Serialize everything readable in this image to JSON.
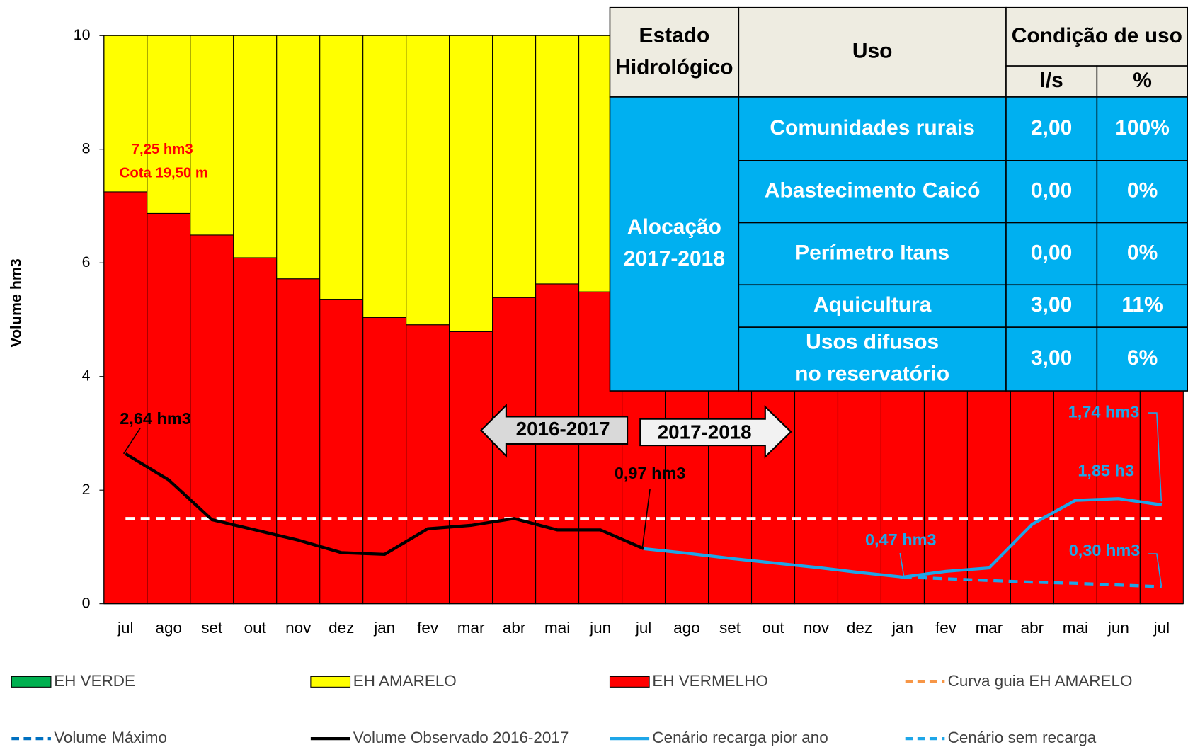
{
  "chart_data": {
    "type": "bar",
    "y_label": "Volume hm3",
    "categories": [
      "jul",
      "ago",
      "set",
      "out",
      "nov",
      "dez",
      "jan",
      "fev",
      "mar",
      "abr",
      "mai",
      "jun",
      "jul",
      "ago",
      "set",
      "out",
      "nov",
      "dez",
      "jan",
      "fev",
      "mar",
      "abr",
      "mai",
      "jun",
      "jul"
    ],
    "ylim": [
      0,
      10
    ],
    "yticks": [
      0,
      2,
      4,
      6,
      8,
      10
    ],
    "grid": false,
    "series": [
      {
        "name": "EH VERDE",
        "kind": "bar",
        "color": "#00b050",
        "values": [
          0,
          0,
          0,
          0,
          0,
          0,
          0,
          0,
          0,
          0,
          0,
          0,
          0,
          0,
          0,
          0,
          0,
          0,
          0,
          0,
          0,
          0,
          0,
          0,
          0
        ]
      },
      {
        "name": "EH AMARELO",
        "kind": "bar",
        "color": "#ffff00",
        "values": [
          2.75,
          3.13,
          3.51,
          3.91,
          4.28,
          4.64,
          4.96,
          5.09,
          5.21,
          4.61,
          4.37,
          4.51,
          0,
          0,
          0,
          0,
          0,
          0,
          0,
          0,
          0,
          0,
          0,
          0,
          0
        ]
      },
      {
        "name": "EH VERMELHO",
        "kind": "bar",
        "color": "#ff0000",
        "values": [
          7.25,
          6.87,
          6.49,
          6.09,
          5.72,
          5.36,
          5.04,
          4.91,
          4.79,
          5.39,
          5.63,
          5.49,
          10,
          10,
          10,
          10,
          10,
          10,
          10,
          10,
          10,
          10,
          10,
          10,
          10
        ]
      },
      {
        "name": "Curva guia EH AMARELO",
        "kind": "line",
        "style": "dashed",
        "color": "#ffffff",
        "legend_color": "#f79646",
        "values": [
          1.5,
          1.5,
          1.5,
          1.5,
          1.5,
          1.5,
          1.5,
          1.5,
          1.5,
          1.5,
          1.5,
          1.5,
          1.5,
          1.5,
          1.5,
          1.5,
          1.5,
          1.5,
          1.5,
          1.5,
          1.5,
          1.5,
          1.5,
          1.5,
          1.5
        ]
      },
      {
        "name": "Volume Máximo",
        "kind": "line",
        "style": "dashed",
        "color": "#0070c0",
        "values": [
          null,
          null,
          null,
          null,
          null,
          null,
          null,
          null,
          null,
          null,
          null,
          null,
          null,
          null,
          null,
          null,
          null,
          null,
          null,
          null,
          null,
          null,
          null,
          null,
          null
        ]
      },
      {
        "name": "Volume Observado 2016-2017",
        "kind": "line",
        "style": "solid",
        "color": "#000000",
        "values": [
          2.64,
          2.18,
          1.48,
          1.3,
          1.12,
          0.9,
          0.87,
          1.32,
          1.38,
          1.5,
          1.3,
          1.3,
          0.97,
          null,
          null,
          null,
          null,
          null,
          null,
          null,
          null,
          null,
          null,
          null,
          null
        ]
      },
      {
        "name": "Cenário recarga pior ano",
        "kind": "line",
        "style": "solid",
        "color": "#1ea6e8",
        "values": [
          null,
          null,
          null,
          null,
          null,
          null,
          null,
          null,
          null,
          null,
          null,
          null,
          0.97,
          0.89,
          0.8,
          0.72,
          0.64,
          0.55,
          0.47,
          0.57,
          0.63,
          1.4,
          1.82,
          1.85,
          1.74
        ]
      },
      {
        "name": "Cenário sem recarga",
        "kind": "line",
        "style": "dashed",
        "color": "#1ea6e8",
        "values": [
          null,
          null,
          null,
          null,
          null,
          null,
          null,
          null,
          null,
          null,
          null,
          null,
          null,
          null,
          null,
          null,
          null,
          null,
          0.47,
          0.44,
          0.41,
          0.38,
          0.36,
          0.33,
          0.3
        ]
      }
    ],
    "annotations": [
      "7,25 hm3",
      "Cota 19,50 m",
      "2,64 hm3",
      "0,97 hm3",
      "0,47 hm3",
      "1,74 hm3",
      "1,85 h3",
      "0,30 hm3",
      "2016-2017",
      "2017-2018"
    ]
  },
  "table": {
    "headers": [
      "Estado Hidrológico",
      "Uso",
      "Condição de uso",
      "l/s",
      "%"
    ],
    "state": "Alocação 2017-2018",
    "rows": [
      [
        "Comunidades rurais",
        "2,00",
        "100%"
      ],
      [
        "Abastecimento Caicó",
        "0,00",
        "0%"
      ],
      [
        "Perímetro Itans",
        "0,00",
        "0%"
      ],
      [
        "Aquicultura",
        "3,00",
        "11%"
      ],
      [
        "Usos difusos no reservatório",
        "3,00",
        "6%"
      ]
    ]
  }
}
